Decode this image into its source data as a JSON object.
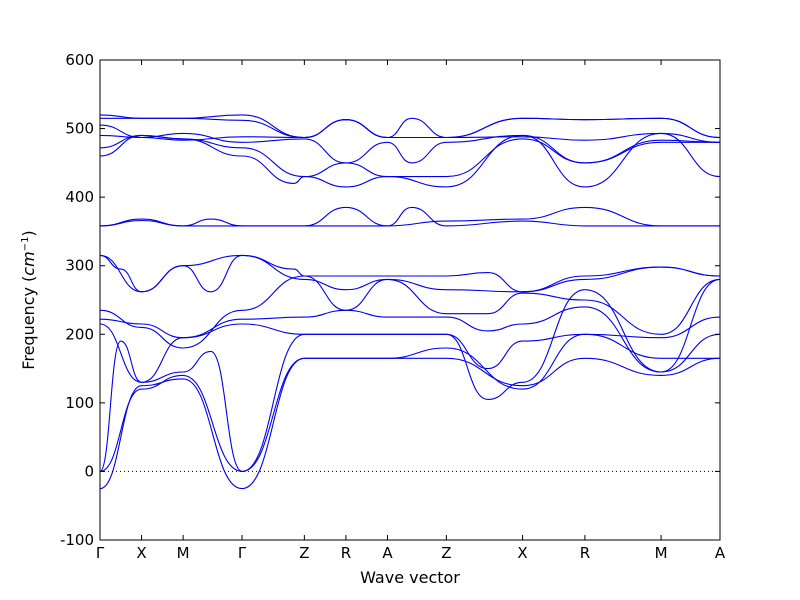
{
  "chart_data": {
    "type": "line",
    "title": "",
    "xlabel": "Wave vector",
    "ylabel": "Frequency",
    "ylabel_unit": "cm",
    "ylabel_unit_exp": "−1",
    "ylim": [
      -100,
      600
    ],
    "yticks": [
      -100,
      0,
      100,
      200,
      300,
      400,
      500,
      600
    ],
    "grid": false,
    "line_color": "#0000ee",
    "kpoints": [
      {
        "label": "Γ",
        "x": 0.0
      },
      {
        "label": "X",
        "x": 0.6
      },
      {
        "label": "M",
        "x": 1.2
      },
      {
        "label": "Γ",
        "x": 2.05
      },
      {
        "label": "Z",
        "x": 2.95
      },
      {
        "label": "R",
        "x": 3.55
      },
      {
        "label": "A",
        "x": 4.15
      },
      {
        "label": "Z",
        "x": 5.0
      },
      {
        "label": "X",
        "x": 6.1
      },
      {
        "label": "R",
        "x": 7.0
      },
      {
        "label": "M",
        "x": 8.1
      },
      {
        "label": "A",
        "x": 8.95
      }
    ],
    "series": [
      {
        "x": [
          0,
          0.6,
          1.2,
          2.05,
          2.95,
          3.55,
          4.15,
          5.0,
          6.1,
          7.0,
          8.1,
          8.95
        ],
        "values": [
          0,
          120,
          140,
          0,
          165,
          165,
          165,
          165,
          125,
          165,
          140,
          165
        ]
      },
      {
        "x": [
          0,
          0.6,
          1.2,
          2.05,
          2.95,
          3.55,
          4.15,
          5.0,
          6.1,
          7.0,
          8.1,
          8.95
        ],
        "values": [
          -25,
          125,
          135,
          -25,
          165,
          165,
          165,
          180,
          120,
          200,
          165,
          165
        ]
      },
      {
        "x": [
          0,
          0.3,
          0.6,
          1.2,
          1.6,
          2.05,
          2.95,
          3.55,
          4.15,
          5.0,
          5.6,
          6.1,
          7.0,
          8.1,
          8.95
        ],
        "values": [
          0,
          190,
          130,
          145,
          175,
          0,
          200,
          200,
          200,
          200,
          105,
          130,
          265,
          145,
          200
        ]
      },
      {
        "x": [
          0,
          0.6,
          1.2,
          2.05,
          2.95,
          3.55,
          4.15,
          5.0,
          5.6,
          6.1,
          7.0,
          8.1,
          8.95
        ],
        "values": [
          215,
          130,
          195,
          215,
          200,
          200,
          200,
          200,
          150,
          190,
          200,
          195,
          225
        ]
      },
      {
        "x": [
          0,
          0.6,
          1.2,
          2.05,
          2.95,
          3.55,
          4.15,
          5.0,
          5.6,
          6.1,
          7.0,
          8.1,
          8.95
        ],
        "values": [
          222,
          215,
          195,
          222,
          225,
          235,
          225,
          225,
          205,
          215,
          240,
          145,
          280
        ]
      },
      {
        "x": [
          0,
          0.6,
          1.2,
          2.05,
          2.95,
          3.55,
          4.15,
          5.0,
          5.6,
          6.1,
          7.0,
          8.1,
          8.95
        ],
        "values": [
          235,
          210,
          180,
          235,
          285,
          235,
          280,
          230,
          230,
          260,
          250,
          200,
          280
        ]
      },
      {
        "x": [
          0,
          0.3,
          0.6,
          1.2,
          1.6,
          2.05,
          2.8,
          2.95,
          3.55,
          4.15,
          5.0,
          5.6,
          6.1,
          7.0,
          8.1,
          8.95
        ],
        "values": [
          315,
          295,
          262,
          300,
          262,
          315,
          295,
          285,
          285,
          285,
          285,
          290,
          262,
          285,
          298,
          285
        ]
      },
      {
        "x": [
          0,
          0.6,
          1.2,
          2.05,
          2.95,
          3.55,
          4.15,
          5.0,
          6.1,
          7.0,
          8.1,
          8.95
        ],
        "values": [
          315,
          262,
          300,
          315,
          280,
          265,
          280,
          265,
          262,
          280,
          298,
          285
        ]
      },
      {
        "x": [
          0,
          0.6,
          1.2,
          2.05,
          2.95,
          3.55,
          4.15,
          5.0,
          6.1,
          7.0,
          8.1,
          8.95
        ],
        "values": [
          358,
          368,
          358,
          358,
          358,
          385,
          358,
          365,
          368,
          385,
          358,
          358
        ]
      },
      {
        "x": [
          0,
          0.6,
          1.2,
          1.6,
          2.05,
          2.95,
          3.55,
          4.15,
          4.5,
          5.0,
          6.1,
          7.0,
          8.1,
          8.95
        ],
        "values": [
          358,
          366,
          358,
          368,
          358,
          358,
          358,
          358,
          385,
          358,
          365,
          358,
          358,
          358
        ]
      },
      {
        "x": [
          0,
          0.6,
          1.2,
          2.05,
          2.8,
          2.95,
          3.55,
          4.15,
          5.0,
          6.1,
          7.0,
          8.1,
          8.95
        ],
        "values": [
          460,
          490,
          485,
          460,
          420,
          430,
          415,
          430,
          415,
          490,
          415,
          493,
          430
        ]
      },
      {
        "x": [
          0,
          0.6,
          1.2,
          2.05,
          2.95,
          3.55,
          4.15,
          4.5,
          5.0,
          6.1,
          7.0,
          8.1,
          8.95
        ],
        "values": [
          472,
          490,
          485,
          472,
          430,
          450,
          430,
          430,
          430,
          485,
          450,
          483,
          480
        ]
      },
      {
        "x": [
          0,
          0.6,
          1.2,
          2.05,
          2.95,
          3.55,
          4.15,
          4.5,
          5.0,
          6.1,
          7.0,
          8.1,
          8.95
        ],
        "values": [
          490,
          487,
          493,
          480,
          485,
          450,
          480,
          450,
          480,
          490,
          450,
          480,
          480
        ]
      },
      {
        "x": [
          0,
          0.6,
          1.2,
          2.05,
          2.95,
          3.55,
          4.15,
          4.5,
          5.0,
          6.1,
          7.0,
          8.1,
          8.95
        ],
        "values": [
          505,
          487,
          483,
          488,
          487,
          513,
          487,
          487,
          487,
          488,
          483,
          493,
          480
        ]
      },
      {
        "x": [
          0,
          0.6,
          1.2,
          2.05,
          2.95,
          3.55,
          4.15,
          4.5,
          5.0,
          6.1,
          7.0,
          8.1,
          8.95
        ],
        "values": [
          515,
          515,
          515,
          520,
          487,
          513,
          487,
          515,
          487,
          515,
          513,
          515,
          487
        ]
      },
      {
        "x": [
          0,
          0.6,
          1.2,
          2.05,
          2.95,
          3.55,
          4.15,
          5.0,
          6.1,
          7.0,
          8.1,
          8.95
        ],
        "values": [
          520,
          515,
          515,
          512,
          487,
          513,
          487,
          487,
          515,
          513,
          515,
          487
        ]
      }
    ]
  }
}
